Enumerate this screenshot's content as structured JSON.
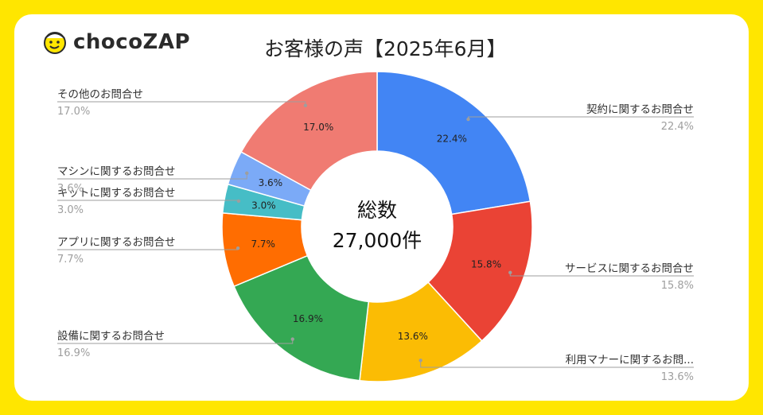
{
  "brand": {
    "name": "chocoZAP"
  },
  "chart_data": {
    "type": "pie",
    "title": "お客様の声【2025年6月】",
    "center_label": [
      "総数",
      "27,000件"
    ],
    "slices": [
      {
        "label": "契約に関するお問合せ",
        "value": 22.4,
        "value_label": "22.4%",
        "color": "#4285F4"
      },
      {
        "label": "サービスに関するお問合せ",
        "value": 15.8,
        "value_label": "15.8%",
        "color": "#EA4335"
      },
      {
        "label": "利用マナーに関するお問...",
        "value": 13.6,
        "value_label": "13.6%",
        "color": "#FBBC04"
      },
      {
        "label": "設備に関するお問合せ",
        "value": 16.9,
        "value_label": "16.9%",
        "color": "#34A853"
      },
      {
        "label": "アプリに関するお問合せ",
        "value": 7.7,
        "value_label": "7.7%",
        "color": "#FF6D01"
      },
      {
        "label": "キットに関するお問合せ",
        "value": 3.0,
        "value_label": "3.0%",
        "color": "#46BDC6"
      },
      {
        "label": "マシンに関するお問合せ",
        "value": 3.6,
        "value_label": "3.6%",
        "color": "#7BAAF7"
      },
      {
        "label": "その他のお問合せ",
        "value": 17.0,
        "value_label": "17.0%",
        "color": "#F07B72"
      }
    ]
  }
}
